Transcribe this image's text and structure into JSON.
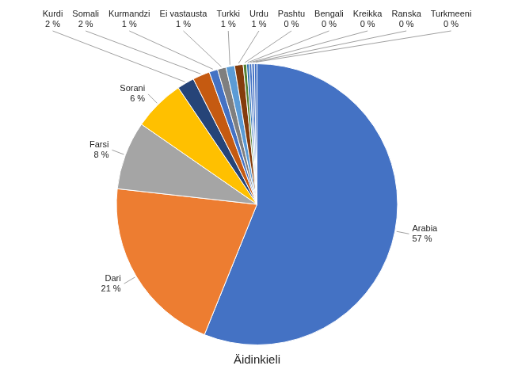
{
  "chart_data": {
    "type": "pie",
    "title": "Äidinkieli",
    "categories": [
      "Arabia",
      "Dari",
      "Farsi",
      "Sorani",
      "Kurdi",
      "Somali",
      "Kurmandzi",
      "Ei vastausta",
      "Turkki",
      "Urdu",
      "Pashtu",
      "Bengali",
      "Kreikka",
      "Ranska",
      "Turkmeeni"
    ],
    "values": [
      57,
      21,
      8,
      6,
      2,
      2,
      1,
      1,
      1,
      1,
      0.4,
      0.3,
      0.3,
      0.3,
      0.3
    ],
    "value_labels": [
      "57 %",
      "21 %",
      "8 %",
      "6 %",
      "2 %",
      "2 %",
      "1 %",
      "1 %",
      "1 %",
      "1 %",
      "0 %",
      "0 %",
      "0 %",
      "0 %",
      "0 %"
    ],
    "colors": [
      "#4472C4",
      "#ED7D31",
      "#A5A5A5",
      "#FFC000",
      "#264478",
      "#C55A11",
      "#4472C4",
      "#7F7F7F",
      "#5B9BD5",
      "#843C0C",
      "#548235",
      "#2E75B6",
      "#4472C4",
      "#4472C4",
      "#4472C4"
    ],
    "data_labels": true
  }
}
